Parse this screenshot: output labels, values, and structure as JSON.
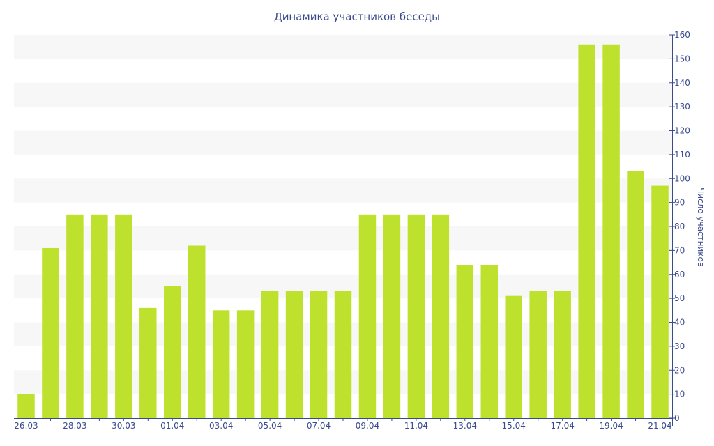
{
  "colors": {
    "bar": "#bde12d",
    "axis": "#3a4a8c",
    "band": "#f7f7f7",
    "text": "#3a4a8c"
  },
  "chart_data": {
    "type": "bar",
    "title": "Динамика участников беседы",
    "ylabel": "Число участников",
    "xlabel": "",
    "ylim": [
      0,
      160
    ],
    "yticks": [
      0,
      10,
      20,
      30,
      40,
      50,
      60,
      70,
      80,
      90,
      100,
      110,
      120,
      130,
      140,
      150,
      160
    ],
    "y_axis_side": "right",
    "grid": "alternating horizontal bands",
    "categories": [
      "26.03",
      "27.03",
      "28.03",
      "29.03",
      "30.03",
      "31.03",
      "01.04",
      "02.04",
      "03.04",
      "04.04",
      "05.04",
      "06.04",
      "07.04",
      "08.04",
      "09.04",
      "10.04",
      "11.04",
      "12.04",
      "13.04",
      "14.04",
      "15.04",
      "16.04",
      "17.04",
      "18.04",
      "19.04",
      "20.04",
      "21.04"
    ],
    "xtick_labels": [
      "26.03",
      "28.03",
      "30.03",
      "01.04",
      "03.04",
      "05.04",
      "07.04",
      "09.04",
      "11.04",
      "13.04",
      "15.04",
      "17.04",
      "19.04",
      "21.04"
    ],
    "values": [
      10,
      71,
      85,
      85,
      85,
      46,
      55,
      72,
      45,
      45,
      53,
      53,
      53,
      53,
      85,
      85,
      85,
      85,
      64,
      64,
      51,
      53,
      53,
      156,
      156,
      103,
      97
    ]
  }
}
